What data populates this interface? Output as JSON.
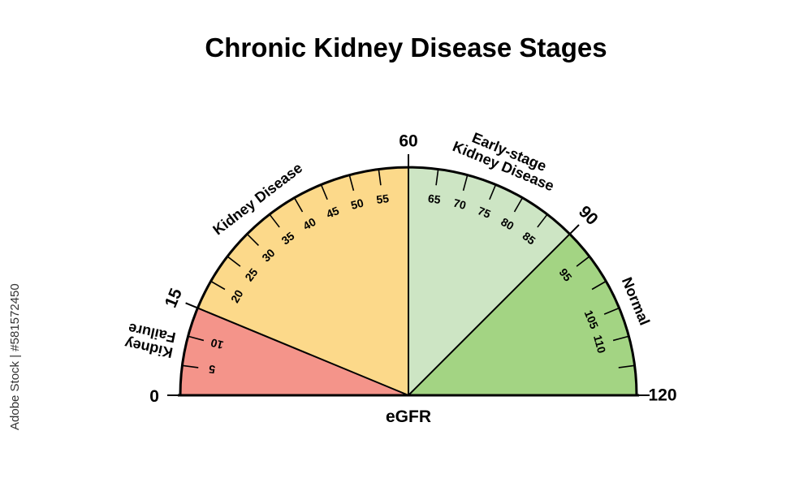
{
  "title": "Chronic Kidney Disease Stages",
  "watermark_id": "Adobe Stock | #581572450",
  "chart_data": {
    "type": "gauge",
    "title": "Chronic Kidney Disease Stages",
    "xlabel": "eGFR",
    "range": [
      0,
      120
    ],
    "major_ticks": [
      {
        "value": 0,
        "label": "0"
      },
      {
        "value": 15,
        "label": "15"
      },
      {
        "value": 60,
        "label": "60"
      },
      {
        "value": 90,
        "label": "90"
      },
      {
        "value": 120,
        "label": "120"
      }
    ],
    "minor_ticks": [
      5,
      10,
      20,
      25,
      30,
      35,
      40,
      45,
      50,
      55,
      65,
      70,
      75,
      80,
      85,
      95,
      100,
      105,
      110,
      115
    ],
    "minor_tick_labels": [
      5,
      10,
      20,
      25,
      30,
      35,
      40,
      45,
      50,
      55,
      65,
      70,
      75,
      80,
      85,
      95,
      105,
      110
    ],
    "segments": [
      {
        "label_lines": [
          "Kidney",
          "Failure"
        ],
        "from": 0,
        "to": 15,
        "color": "#f4948a"
      },
      {
        "label_lines": [
          "Kidney Disease"
        ],
        "from": 15,
        "to": 60,
        "color": "#fcd98a"
      },
      {
        "label_lines": [
          "Early-stage",
          "Kidney Disease"
        ],
        "from": 60,
        "to": 90,
        "color": "#cde5c4"
      },
      {
        "label_lines": [
          "Normal"
        ],
        "from": 90,
        "to": 120,
        "color": "#a3d483"
      }
    ]
  }
}
